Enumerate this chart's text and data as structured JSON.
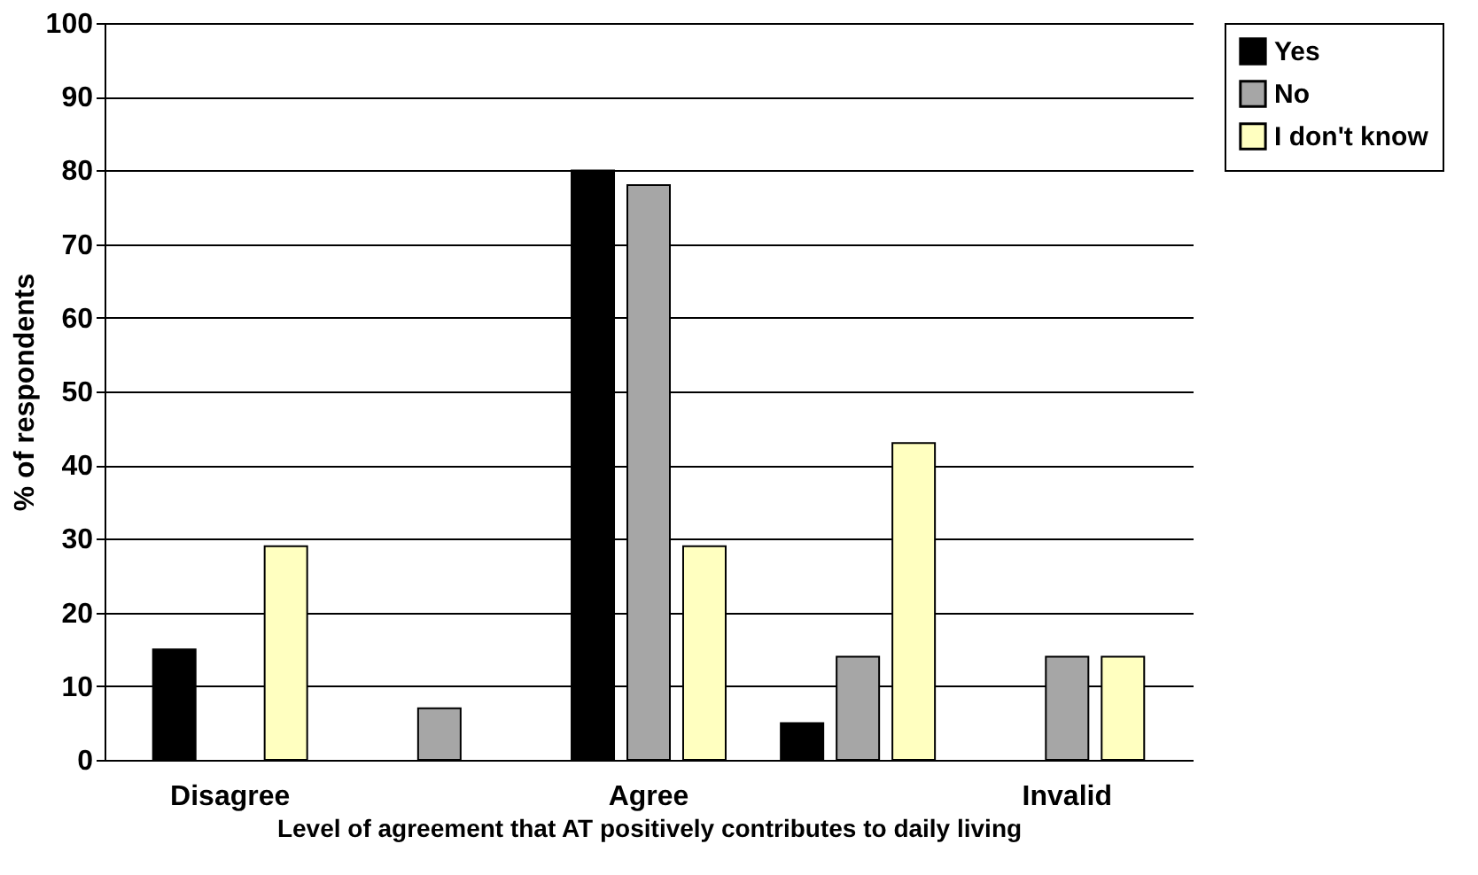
{
  "chart_data": {
    "type": "bar",
    "xlabel": "Level of agreement that AT positively contributes to daily living",
    "ylabel": "% of respondents",
    "categories": [
      "Disagree",
      null,
      "Agree",
      null,
      "Invalid"
    ],
    "series": [
      {
        "name": "Yes",
        "color": "#000000",
        "values": [
          15,
          null,
          80,
          5,
          null
        ]
      },
      {
        "name": "No",
        "color": "#a6a6a6",
        "values": [
          null,
          7,
          78,
          14,
          14
        ]
      },
      {
        "name": "I don't know",
        "color": "#ffffc0",
        "values": [
          29,
          null,
          29,
          43,
          14
        ]
      }
    ],
    "ylim": [
      0,
      100
    ],
    "yticks": [
      0,
      10,
      20,
      30,
      40,
      50,
      60,
      70,
      80,
      90,
      100
    ],
    "grid": "y",
    "legend": "right"
  }
}
